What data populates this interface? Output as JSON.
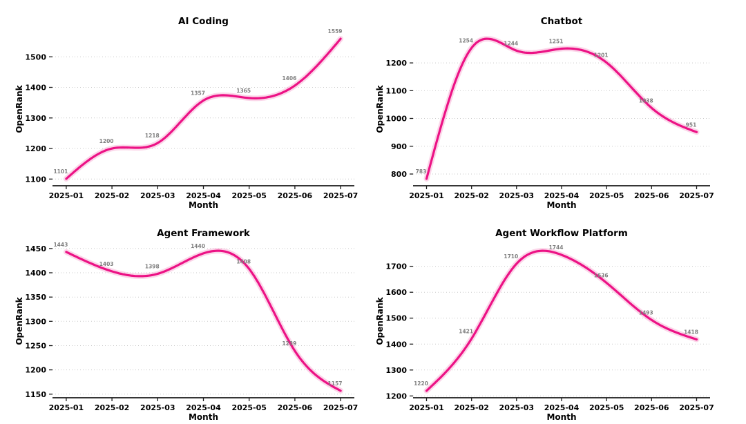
{
  "page": {
    "background": "#ffffff"
  },
  "colors": {
    "line": "#EC1285",
    "line_halo": "#F7ADD4",
    "grid": "#C9C9C9",
    "axis": "#1A1A1A",
    "tick_text": "#000000",
    "value_labels": "#7F7F7F"
  },
  "chart_data": [
    {
      "type": "line",
      "title": "AI Coding",
      "xlabel": "Month",
      "ylabel": "OpenRank",
      "categories": [
        "2025-01",
        "2025-02",
        "2025-03",
        "2025-04",
        "2025-05",
        "2025-06",
        "2025-07"
      ],
      "values": [
        1101,
        1200,
        1218,
        1357,
        1365,
        1406,
        1559
      ],
      "yticks": [
        1100,
        1200,
        1300,
        1400,
        1500
      ],
      "ylim_approx": [
        1078,
        1582
      ],
      "grid": true,
      "legend": null,
      "smooth": true
    },
    {
      "type": "line",
      "title": "Chatbot",
      "xlabel": "Month",
      "ylabel": "OpenRank",
      "categories": [
        "2025-01",
        "2025-02",
        "2025-03",
        "2025-04",
        "2025-05",
        "2025-06",
        "2025-07"
      ],
      "values": [
        783,
        1254,
        1244,
        1251,
        1201,
        1038,
        951
      ],
      "yticks": [
        800,
        900,
        1000,
        1100,
        1200
      ],
      "ylim_approx": [
        759,
        1286
      ],
      "grid": true,
      "legend": null,
      "smooth": true
    },
    {
      "type": "line",
      "title": "Agent Framework",
      "xlabel": "Month",
      "ylabel": "OpenRank",
      "categories": [
        "2025-01",
        "2025-02",
        "2025-03",
        "2025-04",
        "2025-05",
        "2025-06",
        "2025-07"
      ],
      "values": [
        1443,
        1403,
        1398,
        1440,
        1408,
        1239,
        1157
      ],
      "yticks": [
        1150,
        1200,
        1250,
        1300,
        1350,
        1400,
        1450
      ],
      "ylim_approx": [
        1136,
        1460
      ],
      "grid": true,
      "legend": null,
      "smooth": true
    },
    {
      "type": "line",
      "title": "Agent Workflow Platform",
      "xlabel": "Month",
      "ylabel": "OpenRank",
      "categories": [
        "2025-01",
        "2025-02",
        "2025-03",
        "2025-04",
        "2025-05",
        "2025-06",
        "2025-07"
      ],
      "values": [
        1220,
        1421,
        1710,
        1744,
        1636,
        1493,
        1418
      ],
      "yticks": [
        1200,
        1300,
        1400,
        1500,
        1600,
        1700
      ],
      "ylim_approx": [
        1193,
        1783
      ],
      "grid": true,
      "legend": null,
      "smooth": true
    }
  ]
}
